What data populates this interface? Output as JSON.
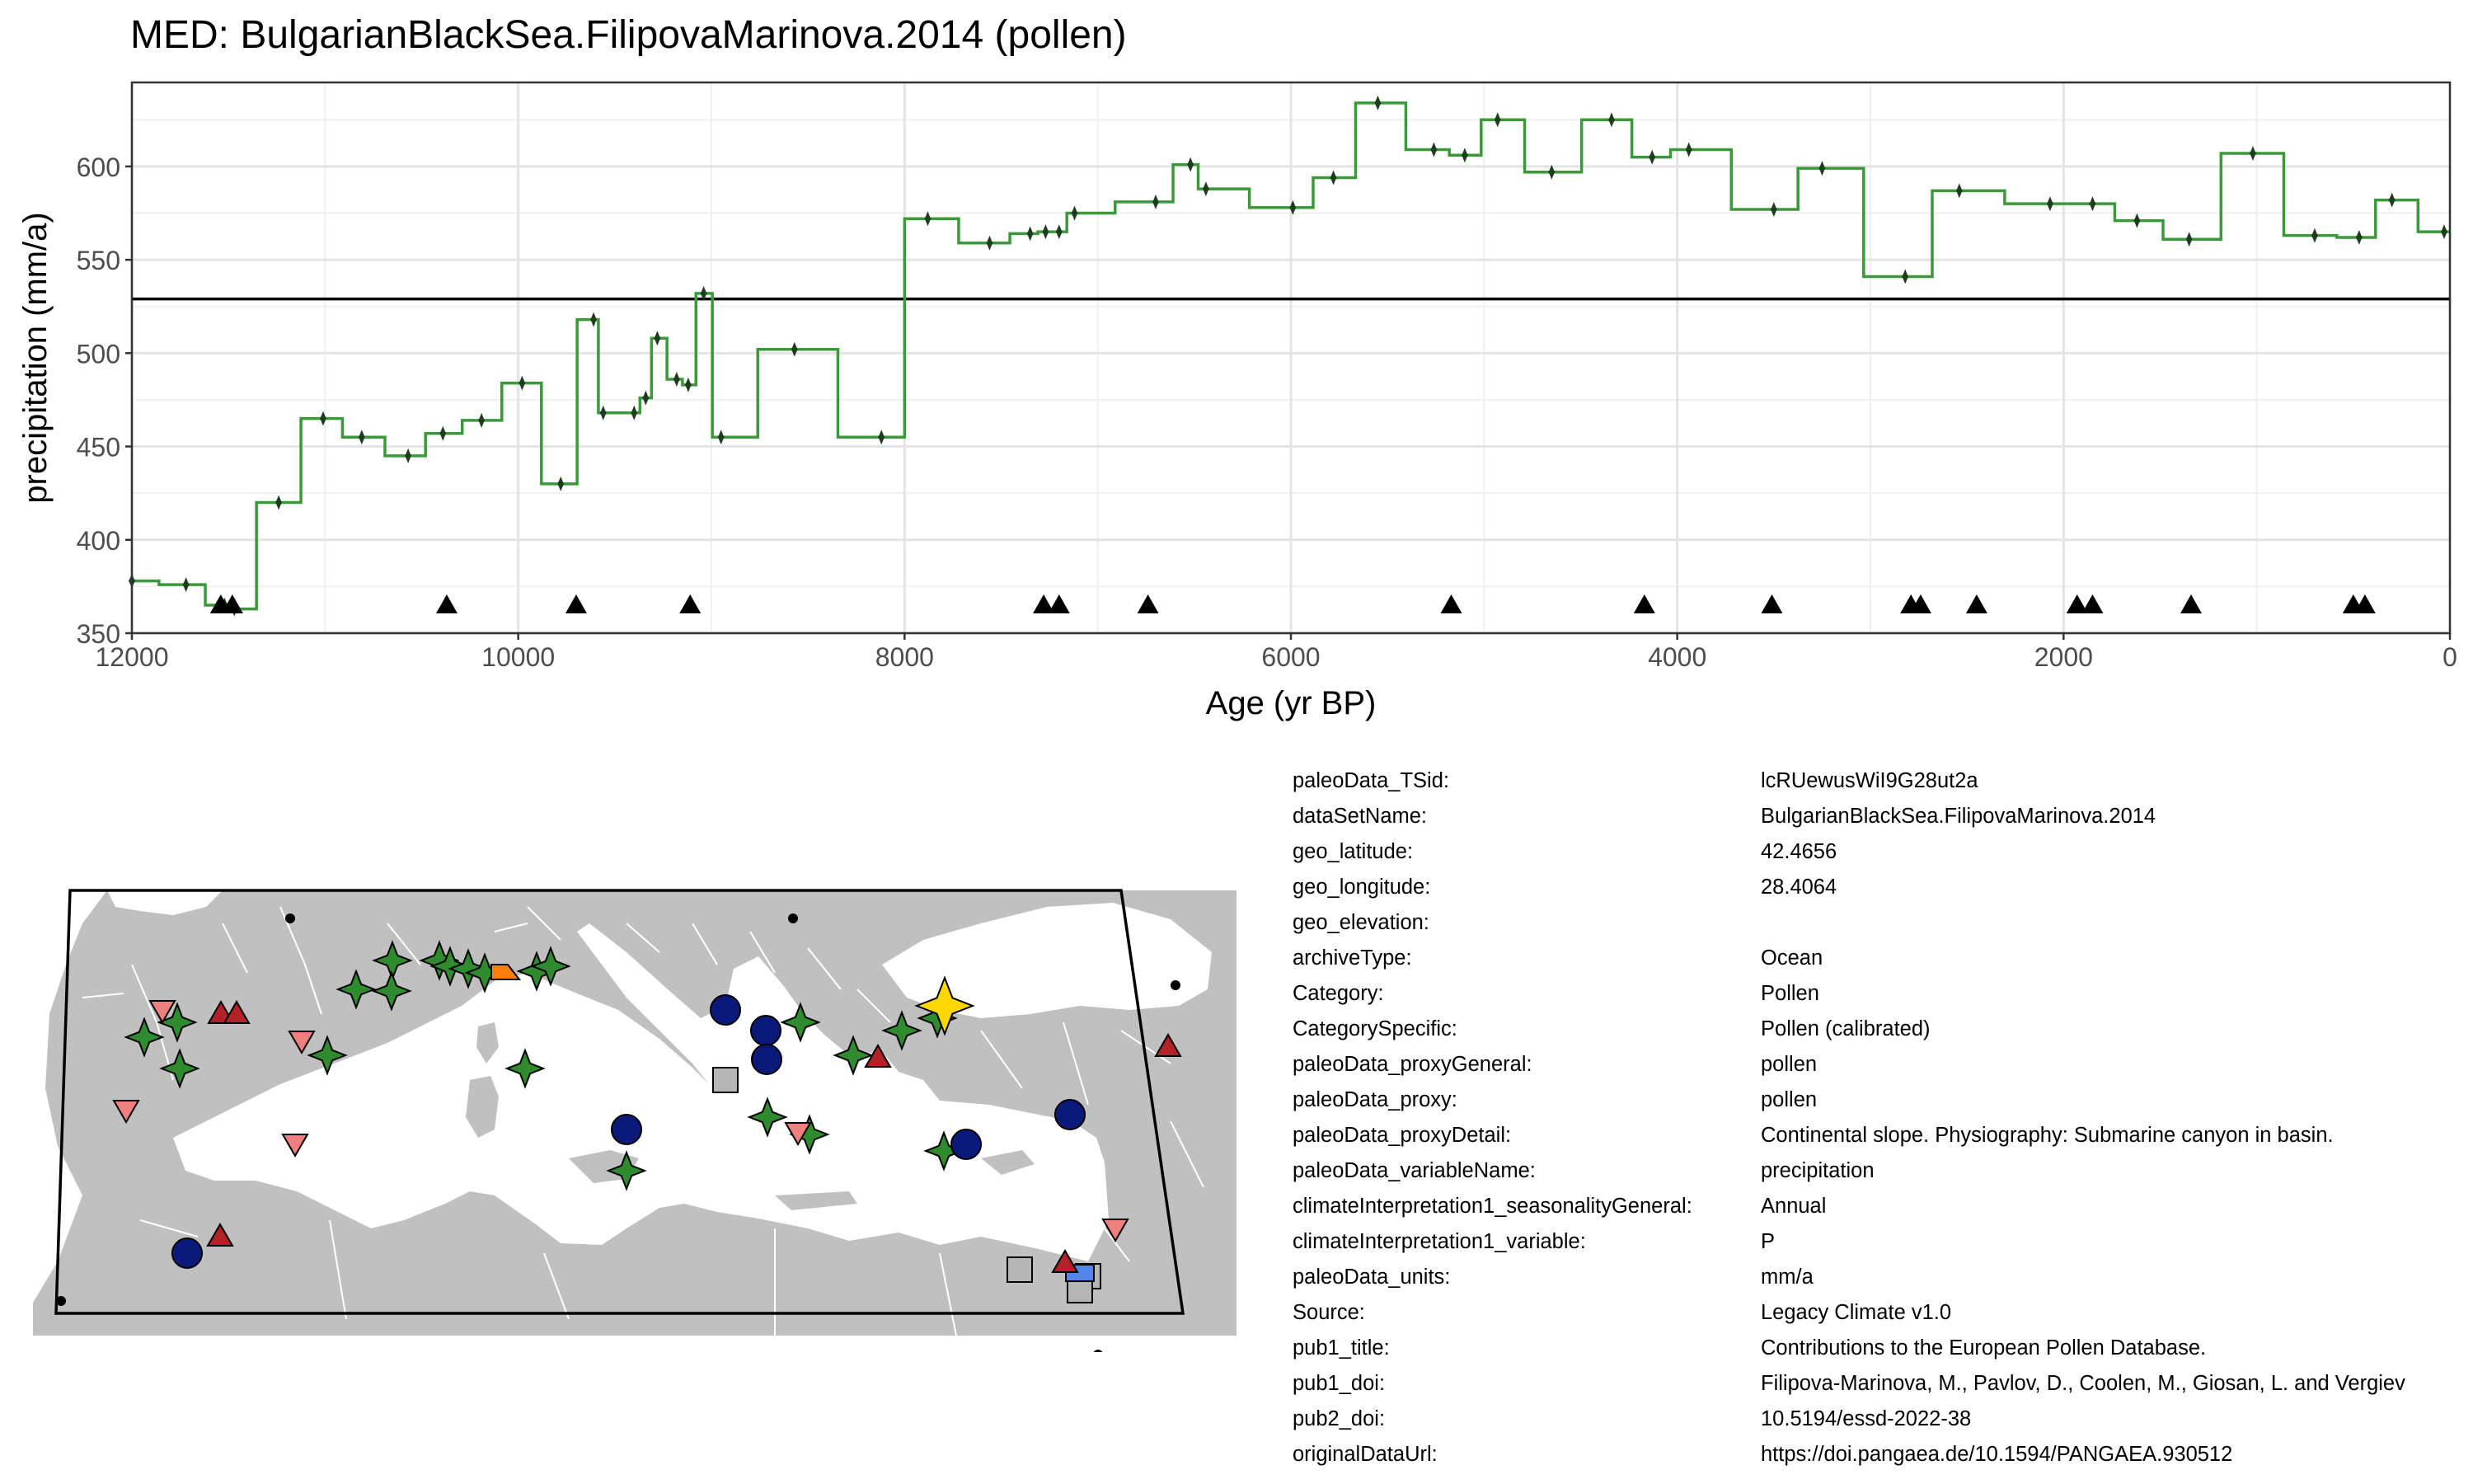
{
  "chart_data": {
    "type": "line",
    "title": "MED: BulgarianBlackSea.FilipovaMarinova.2014 (pollen)",
    "xlabel": "Age (yr BP)",
    "ylabel": "precipitation (mm/a)",
    "xlim": [
      12000,
      0
    ],
    "ylim": [
      350,
      645
    ],
    "x_reversed": true,
    "grid": true,
    "xticks": [
      12000,
      10000,
      8000,
      6000,
      4000,
      2000,
      0
    ],
    "xtick_labels": [
      "12000",
      "10000",
      "8000",
      "6000",
      "4000",
      "2000",
      "0"
    ],
    "yticks": [
      350,
      400,
      450,
      500,
      550,
      600
    ],
    "ytick_labels": [
      "350",
      "400",
      "450",
      "500",
      "550",
      "600"
    ],
    "reference_line": 529,
    "series": [
      {
        "style": "step",
        "color": "#3a9a3a",
        "point_color": "#1e3d1e",
        "x": [
          12000,
          11720,
          11520,
          11470,
          11240,
          11010,
          10810,
          10570,
          10390,
          10190,
          9980,
          9780,
          9610,
          9560,
          9400,
          9340,
          9280,
          9180,
          9120,
          9040,
          8950,
          8570,
          8120,
          7880,
          7560,
          7350,
          7270,
          7200,
          7120,
          6700,
          6520,
          6440,
          5990,
          5780,
          5550,
          5260,
          5100,
          4930,
          4650,
          4340,
          4130,
          3940,
          3500,
          3250,
          2820,
          2540,
          2070,
          1850,
          1620,
          1350,
          1020,
          700,
          470,
          300,
          30
        ],
        "y": [
          378,
          376,
          365,
          363,
          420,
          465,
          455,
          445,
          457,
          464,
          484,
          430,
          518,
          468,
          468,
          476,
          508,
          486,
          483,
          532,
          455,
          502,
          455,
          572,
          559,
          564,
          565,
          565,
          575,
          581,
          601,
          588,
          578,
          594,
          634,
          609,
          606,
          625,
          597,
          625,
          605,
          609,
          577,
          599,
          541,
          587,
          580,
          580,
          571,
          561,
          607,
          563,
          562,
          582,
          565
        ]
      }
    ],
    "markers": {
      "shape": "triangle",
      "y": 365,
      "x": [
        11540,
        11480,
        10370,
        9700,
        9110,
        7280,
        7200,
        6740,
        5170,
        4170,
        3510,
        2790,
        2740,
        2450,
        1930,
        1850,
        1340,
        500,
        440
      ]
    }
  },
  "map": {
    "land_color": "#c0c0c0",
    "sea_color": "#ffffff",
    "border_color": "#ffffff",
    "frame_color": "#000000",
    "legend_colors": {
      "pollen": "#2e8b2e",
      "lake_dark_blue": "#0b1a7a",
      "red_triangle": "#b22028",
      "pink_triangle_down": "#f08080",
      "grey_square": "#b5b5b5",
      "orange": "#ff7f0e",
      "blue_rect": "#4f86e8",
      "highlight": "#ffd700"
    }
  },
  "metadata": [
    {
      "key": "paleoData_TSid:",
      "value": "lcRUewusWiI9G28ut2a"
    },
    {
      "key": "dataSetName:",
      "value": "BulgarianBlackSea.FilipovaMarinova.2014"
    },
    {
      "key": "geo_latitude:",
      "value": "42.4656"
    },
    {
      "key": "geo_longitude:",
      "value": "28.4064"
    },
    {
      "key": "geo_elevation:",
      "value": ""
    },
    {
      "key": "archiveType:",
      "value": "Ocean"
    },
    {
      "key": "Category:",
      "value": "Pollen"
    },
    {
      "key": "CategorySpecific:",
      "value": "Pollen (calibrated)"
    },
    {
      "key": "paleoData_proxyGeneral:",
      "value": "pollen"
    },
    {
      "key": "paleoData_proxy:",
      "value": "pollen"
    },
    {
      "key": "paleoData_proxyDetail:",
      "value": "Continental slope. Physiography: Submarine canyon in basin."
    },
    {
      "key": "paleoData_variableName:",
      "value": "precipitation"
    },
    {
      "key": "climateInterpretation1_seasonalityGeneral:",
      "value": "Annual"
    },
    {
      "key": "climateInterpretation1_variable:",
      "value": "P"
    },
    {
      "key": "paleoData_units:",
      "value": "mm/a"
    },
    {
      "key": "Source:",
      "value": "Legacy Climate v1.0"
    },
    {
      "key": "pub1_title:",
      "value": "Contributions to the European Pollen Database."
    },
    {
      "key": "pub1_doi:",
      "value": "Filipova-Marinova, M., Pavlov, D., Coolen, M., Giosan, L. and Vergiev"
    },
    {
      "key": "pub2_doi:",
      "value": "10.5194/essd-2022-38"
    },
    {
      "key": "originalDataUrl:",
      "value": "https://doi.pangaea.de/10.1594/PANGAEA.930512"
    }
  ]
}
